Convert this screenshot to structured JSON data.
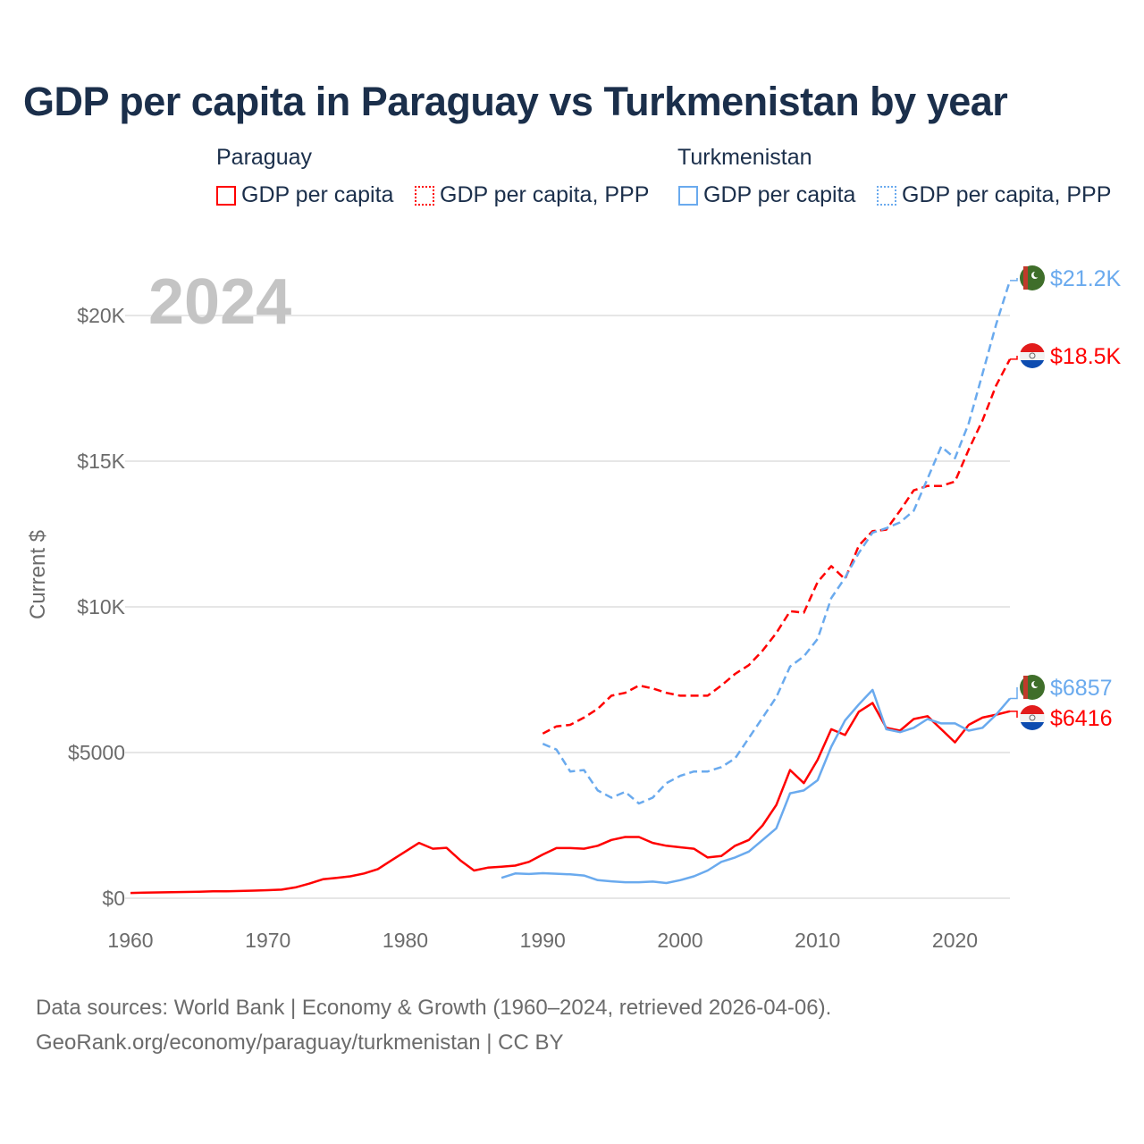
{
  "chart_data": {
    "type": "line",
    "title": "GDP per capita in Paraguay vs Turkmenistan by year",
    "year_watermark": "2024",
    "ylabel": "Current $",
    "xlabel": "",
    "xlim": [
      1960,
      2024
    ],
    "ylim": [
      0,
      22000
    ],
    "x_ticks": [
      1960,
      1970,
      1980,
      1990,
      2000,
      2010,
      2020
    ],
    "x_tick_labels": [
      "1960",
      "1970",
      "1980",
      "1990",
      "2000",
      "2010",
      "2020"
    ],
    "y_ticks": [
      0,
      5000,
      10000,
      15000,
      20000
    ],
    "y_tick_labels": [
      "$0",
      "$5000",
      "$10K",
      "$15K",
      "$20K"
    ],
    "grid": true,
    "legend_groups": [
      {
        "country": "Paraguay",
        "items": [
          "GDP per capita",
          "GDP per capita, PPP"
        ]
      },
      {
        "country": "Turkmenistan",
        "items": [
          "GDP per capita",
          "GDP per capita, PPP"
        ]
      }
    ],
    "series": [
      {
        "name": "Paraguay GDP per capita",
        "color": "#ff0000",
        "dash": false,
        "start": 1960,
        "end_label": "$6416",
        "values": [
          180,
          190,
          200,
          205,
          215,
          225,
          235,
          240,
          250,
          260,
          275,
          295,
          370,
          500,
          650,
          700,
          750,
          850,
          1000,
          1300,
          1600,
          1900,
          1700,
          1730,
          1300,
          950,
          1050,
          1080,
          1120,
          1250,
          1500,
          1720,
          1720,
          1700,
          1800,
          2000,
          2100,
          2100,
          1900,
          1800,
          1750,
          1700,
          1400,
          1450,
          1800,
          2000,
          2500,
          3200,
          4400,
          3950,
          4750,
          5800,
          5600,
          6400,
          6700,
          5850,
          5750,
          6150,
          6250,
          5800,
          5350,
          5950,
          6200,
          6300,
          6416
        ]
      },
      {
        "name": "Paraguay GDP per capita, PPP",
        "color": "#ff0000",
        "dash": true,
        "start": 1990,
        "end_label": "$18.5K",
        "values": [
          5650,
          5900,
          5950,
          6200,
          6500,
          6950,
          7050,
          7300,
          7200,
          7050,
          6950,
          6950,
          6950,
          7300,
          7700,
          8000,
          8500,
          9100,
          9850,
          9800,
          10850,
          11400,
          10950,
          12100,
          12600,
          12650,
          13300,
          14000,
          14150,
          14150,
          14300,
          15400,
          16400,
          17600,
          18500
        ]
      },
      {
        "name": "Turkmenistan GDP per capita",
        "color": "#6aaaee",
        "dash": false,
        "start": 1987,
        "end_label": "$6857",
        "values": [
          700,
          850,
          830,
          860,
          840,
          820,
          780,
          620,
          580,
          550,
          550,
          570,
          520,
          620,
          750,
          950,
          1250,
          1400,
          1600,
          2000,
          2400,
          3600,
          3700,
          4050,
          5200,
          6100,
          6650,
          7150,
          5800,
          5700,
          5850,
          6150,
          6000,
          6000,
          5750,
          5850,
          6300,
          6857
        ]
      },
      {
        "name": "Turkmenistan GDP per capita, PPP",
        "color": "#6aaaee",
        "dash": true,
        "start": 1990,
        "end_label": "$21.2K",
        "values": [
          5300,
          5100,
          4350,
          4400,
          3700,
          3450,
          3650,
          3250,
          3450,
          3950,
          4200,
          4350,
          4350,
          4500,
          4800,
          5500,
          6200,
          6900,
          7950,
          8300,
          8900,
          10300,
          11000,
          11850,
          12550,
          12700,
          12900,
          13300,
          14400,
          15500,
          15100,
          16300,
          18000,
          19700,
          21200
        ]
      }
    ]
  },
  "legend": {
    "paraguay": "Paraguay",
    "turkmenistan": "Turkmenistan",
    "gdp": "GDP per capita",
    "ppp": "GDP per capita, PPP"
  },
  "source": {
    "line1": "Data sources: World Bank | Economy & Growth (1960–2024, retrieved 2026-04-06).",
    "line2": "GeoRank.org/economy/paraguay/turkmenistan | CC BY"
  }
}
